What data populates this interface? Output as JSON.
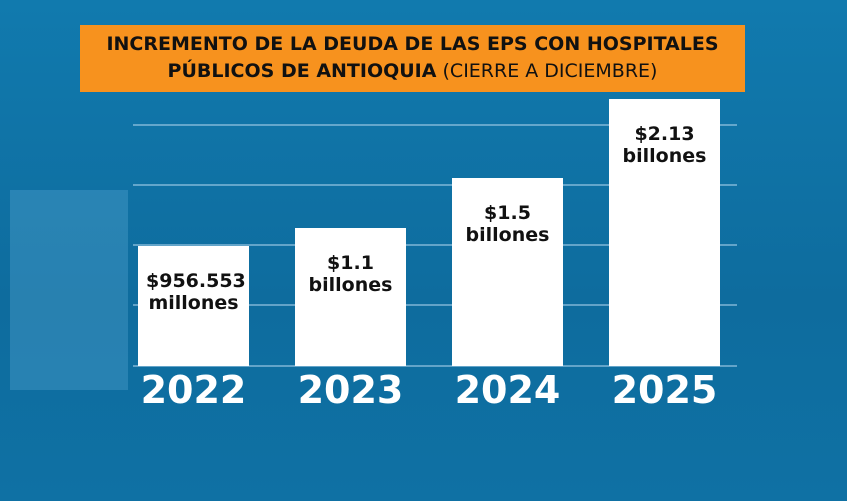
{
  "chart_data": {
    "type": "bar",
    "title": "INCREMENTO DE LA DEUDA DE LAS EPS CON HOSPITALES PÚBLICOS DE ANTIOQUIA",
    "subtitle": "(CIERRE A DICIEMBRE)",
    "categories": [
      "2022",
      "2023",
      "2024",
      "2025"
    ],
    "values": [
      0.956553,
      1.1,
      1.5,
      2.13
    ],
    "value_labels": [
      "$956.553 millones",
      "$1.1 billones",
      "$1.5 billones",
      "$2.13 billones"
    ],
    "color": "#ffffff"
  }
}
